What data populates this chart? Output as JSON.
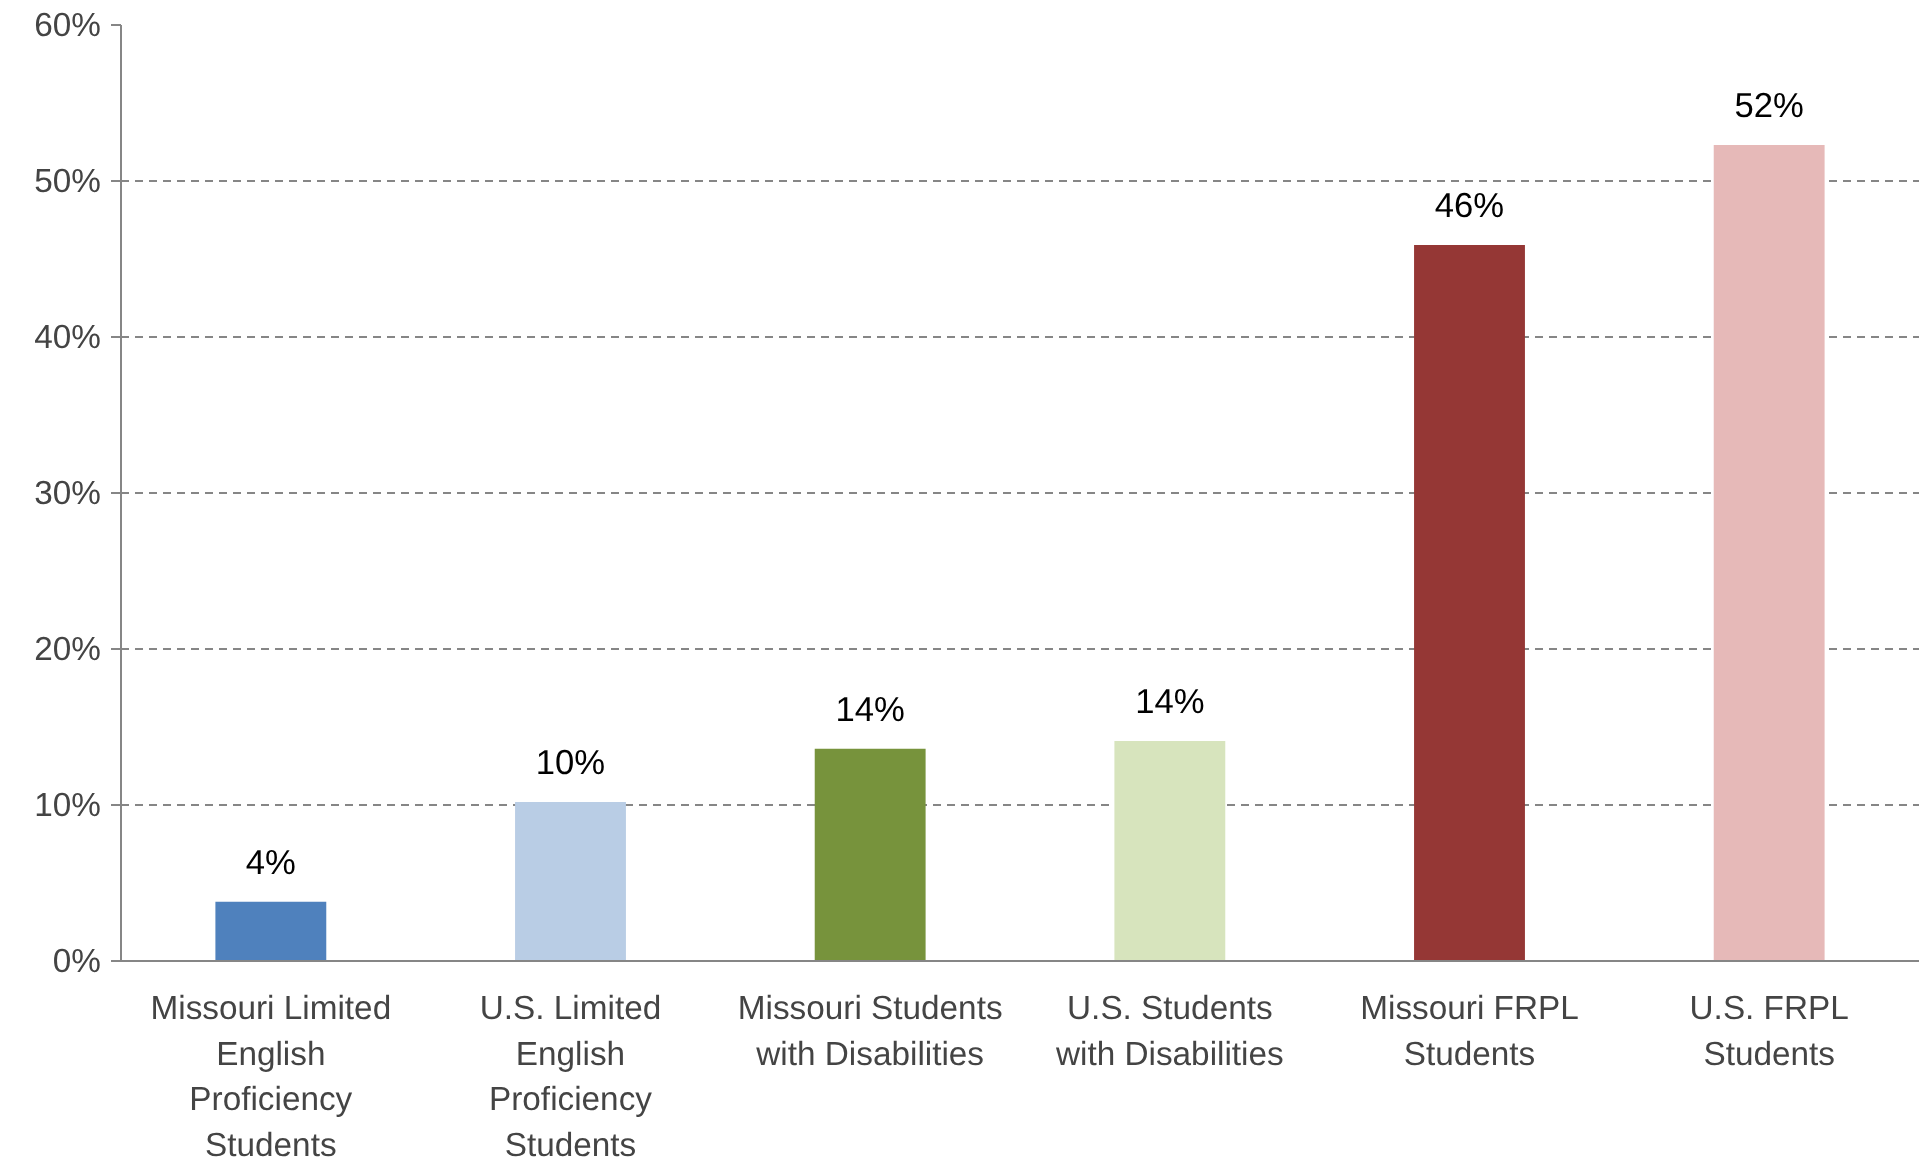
{
  "chart_data": {
    "type": "bar",
    "categories": [
      "Missouri Limited English Proficiency Students",
      "U.S. Limited English Proficiency Students",
      "Missouri Students with Disabilities",
      "U.S. Students with Disabilities",
      "Missouri FRPL Students",
      "U.S. FRPL Students"
    ],
    "values": [
      3.8,
      10.2,
      13.6,
      14.1,
      45.9,
      52.3
    ],
    "colors": [
      "#4f81bd",
      "#b9cde5",
      "#77933c",
      "#d7e4bd",
      "#953735",
      "#e6b9b8"
    ],
    "value_labels": [
      "4%",
      "10%",
      "14%",
      "14%",
      "46%",
      "52%"
    ],
    "ylim": [
      0,
      60
    ],
    "yticks": [
      {
        "value": 0,
        "label": "0%"
      },
      {
        "value": 10,
        "label": "10%"
      },
      {
        "value": 20,
        "label": "20%"
      },
      {
        "value": 30,
        "label": "30%"
      },
      {
        "value": 40,
        "label": "40%"
      },
      {
        "value": 50,
        "label": "50%"
      },
      {
        "value": 60,
        "label": "60%"
      }
    ],
    "grid": "y"
  }
}
